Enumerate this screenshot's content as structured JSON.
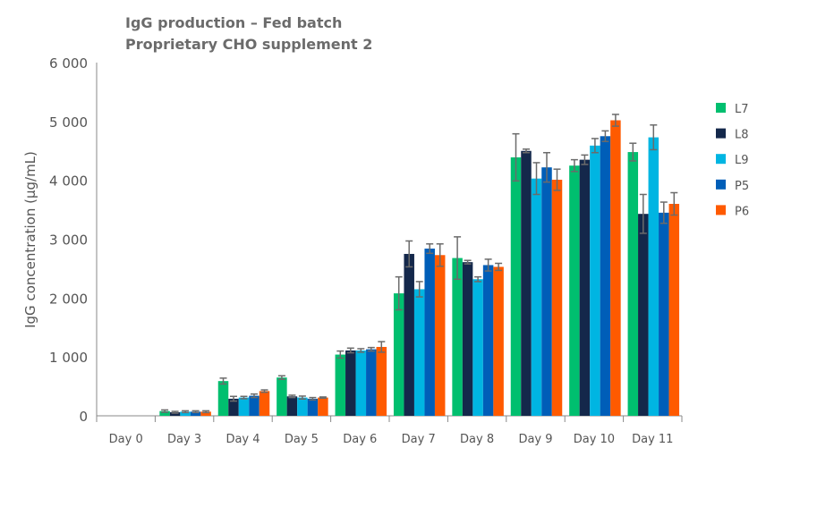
{
  "chart_data": {
    "type": "bar",
    "title": "IgG production – Fed batch",
    "subtitle": "Proprietary CHO supplement 2",
    "xlabel": "",
    "ylabel": "IgG concentration (µg/mL)",
    "ylim": [
      0,
      6000
    ],
    "yticks": [
      0,
      1000,
      2000,
      3000,
      4000,
      5000,
      6000
    ],
    "ytick_labels": [
      "0",
      "1 000",
      "2 000",
      "3 000",
      "4 000",
      "5 000",
      "6 000"
    ],
    "grid": false,
    "legend_position": "right",
    "error_bar_color": "#6b6b6b",
    "categories": [
      "Day 0",
      "Day 3",
      "Day 4",
      "Day 5",
      "Day 6",
      "Day 7",
      "Day 8",
      "Day 9",
      "Day 10",
      "Day 11"
    ],
    "series": [
      {
        "name": "L7",
        "color": "#00bf6f",
        "values": [
          0,
          80,
          590,
          650,
          1040,
          2080,
          2680,
          4390,
          4250,
          4480
        ],
        "errors": [
          0,
          20,
          50,
          30,
          60,
          280,
          360,
          400,
          100,
          150
        ]
      },
      {
        "name": "L8",
        "color": "#14284b",
        "values": [
          0,
          60,
          290,
          330,
          1110,
          2750,
          2610,
          4500,
          4350,
          3430
        ],
        "errors": [
          0,
          15,
          40,
          20,
          40,
          220,
          30,
          30,
          80,
          330
        ]
      },
      {
        "name": "L9",
        "color": "#00b5e2",
        "values": [
          0,
          70,
          310,
          310,
          1110,
          2150,
          2320,
          4030,
          4590,
          4730
        ],
        "errors": [
          0,
          15,
          20,
          25,
          30,
          130,
          40,
          270,
          120,
          210
        ]
      },
      {
        "name": "P5",
        "color": "#005eb8",
        "values": [
          0,
          70,
          340,
          290,
          1130,
          2840,
          2560,
          4220,
          4750,
          3450
        ],
        "errors": [
          0,
          15,
          30,
          20,
          30,
          80,
          100,
          250,
          90,
          180
        ]
      },
      {
        "name": "P6",
        "color": "#ff5a00",
        "values": [
          0,
          70,
          420,
          310,
          1170,
          2730,
          2530,
          4010,
          5020,
          3600
        ],
        "errors": [
          0,
          15,
          20,
          10,
          90,
          190,
          60,
          180,
          100,
          190
        ]
      }
    ]
  }
}
